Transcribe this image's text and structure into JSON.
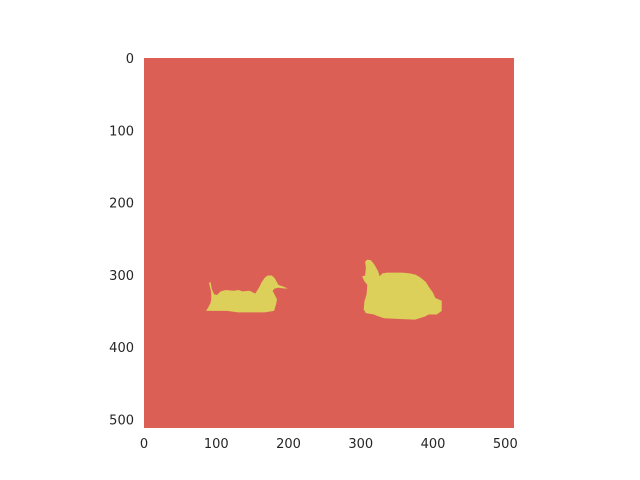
{
  "chart_data": {
    "type": "heatmap",
    "title": "",
    "xlabel": "",
    "ylabel": "",
    "image_width": 512,
    "image_height": 512,
    "xlim": [
      0,
      512
    ],
    "ylim": [
      512,
      0
    ],
    "x_ticks": [
      0,
      100,
      200,
      300,
      400,
      500
    ],
    "y_ticks": [
      0,
      100,
      200,
      300,
      400,
      500
    ],
    "x_tick_labels": [
      "0",
      "100",
      "200",
      "300",
      "400",
      "500"
    ],
    "y_tick_labels": [
      "0",
      "100",
      "200",
      "300",
      "400",
      "500"
    ],
    "grid": false,
    "colors": {
      "background": "#dc5f55",
      "object": "#dccf5a"
    },
    "regions": [
      {
        "label": "duck",
        "points": [
          [
            86,
            350
          ],
          [
            89,
            345
          ],
          [
            92,
            339
          ],
          [
            93,
            334
          ],
          [
            93,
            324
          ],
          [
            91,
            316
          ],
          [
            90,
            311
          ],
          [
            92,
            310
          ],
          [
            94,
            320
          ],
          [
            97,
            327
          ],
          [
            101,
            328
          ],
          [
            106,
            323
          ],
          [
            113,
            321
          ],
          [
            124,
            322
          ],
          [
            131,
            321
          ],
          [
            136,
            323
          ],
          [
            146,
            322
          ],
          [
            150,
            324
          ],
          [
            154,
            326
          ],
          [
            159,
            318
          ],
          [
            163,
            310
          ],
          [
            167,
            304
          ],
          [
            171,
            301
          ],
          [
            177,
            301
          ],
          [
            181,
            305
          ],
          [
            186,
            314
          ],
          [
            192,
            316
          ],
          [
            199,
            319
          ],
          [
            194,
            319
          ],
          [
            186,
            318
          ],
          [
            181,
            319
          ],
          [
            178,
            322
          ],
          [
            181,
            328
          ],
          [
            184,
            334
          ],
          [
            183,
            340
          ],
          [
            180,
            350
          ],
          [
            167,
            352
          ],
          [
            155,
            352
          ],
          [
            130,
            352
          ],
          [
            115,
            350
          ],
          [
            101,
            350
          ],
          [
            92,
            350
          ]
        ]
      },
      {
        "label": "rabbit",
        "points": [
          [
            302,
            302
          ],
          [
            306,
            301
          ],
          [
            307,
            290
          ],
          [
            306,
            282
          ],
          [
            309,
            279
          ],
          [
            314,
            280
          ],
          [
            319,
            286
          ],
          [
            324,
            295
          ],
          [
            326,
            302
          ],
          [
            330,
            298
          ],
          [
            336,
            297
          ],
          [
            348,
            297
          ],
          [
            357,
            297
          ],
          [
            368,
            298
          ],
          [
            376,
            300
          ],
          [
            383,
            304
          ],
          [
            390,
            310
          ],
          [
            395,
            318
          ],
          [
            400,
            325
          ],
          [
            403,
            332
          ],
          [
            412,
            336
          ],
          [
            412,
            350
          ],
          [
            405,
            355
          ],
          [
            394,
            355
          ],
          [
            388,
            358
          ],
          [
            375,
            362
          ],
          [
            350,
            361
          ],
          [
            332,
            360
          ],
          [
            323,
            357
          ],
          [
            318,
            355
          ],
          [
            307,
            353
          ],
          [
            304,
            348
          ],
          [
            305,
            337
          ],
          [
            308,
            327
          ],
          [
            309,
            314
          ],
          [
            305,
            309
          ],
          [
            303,
            305
          ]
        ]
      }
    ]
  }
}
